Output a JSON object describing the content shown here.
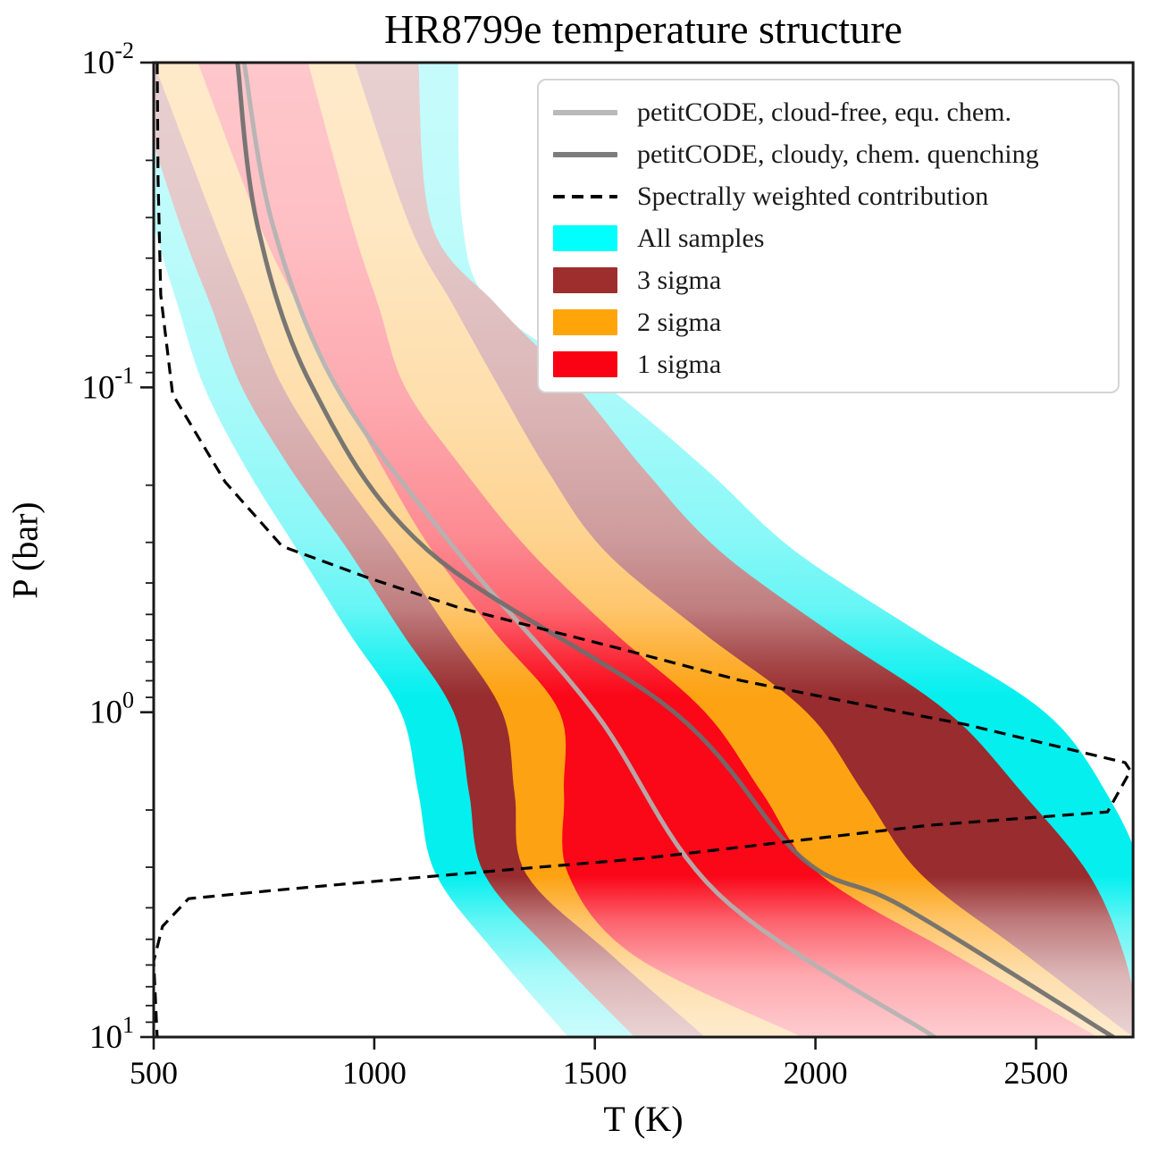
{
  "title": "HR8799e temperature structure",
  "axes": {
    "x": {
      "label": "T (K)",
      "min": 500,
      "max": 2720,
      "ticks": [
        {
          "value": 500,
          "label": "500"
        },
        {
          "value": 1000,
          "label": "1000"
        },
        {
          "value": 1500,
          "label": "1500"
        },
        {
          "value": 2000,
          "label": "2000"
        },
        {
          "value": 2500,
          "label": "2500"
        }
      ]
    },
    "y": {
      "label": "P (bar)",
      "scale": "log",
      "min_exp": -2,
      "max_exp": 1,
      "inverted": true,
      "ticks": [
        {
          "exp": "-2",
          "label": "10^-2"
        },
        {
          "exp": "-1",
          "label": "10^-1"
        },
        {
          "exp": "0",
          "label": "10^0"
        },
        {
          "exp": "1",
          "label": "10^1"
        }
      ]
    }
  },
  "legend": {
    "items": [
      {
        "label": "petitCODE, cloud-free, equ.  chem.",
        "type": "line",
        "color": "#b9b9b9"
      },
      {
        "label": "petitCODE, cloudy, chem.  quenching",
        "type": "line",
        "color": "#7d7d7d"
      },
      {
        "label": "Spectrally weighted contribution",
        "type": "dashed-line",
        "color": "#000000"
      },
      {
        "label": "All samples",
        "type": "patch",
        "color": "#00ffff"
      },
      {
        "label": "3 sigma",
        "type": "patch",
        "color": "#9e2d2d"
      },
      {
        "label": "2 sigma",
        "type": "patch",
        "color": "#ffa50a"
      },
      {
        "label": "1 sigma",
        "type": "patch",
        "color": "#fa0213"
      }
    ]
  },
  "chart_data": {
    "type": "area",
    "title": "HR8799e temperature structure",
    "xlabel": "T (K)",
    "ylabel": "P (bar)",
    "x_unit": "K",
    "y_unit": "bar",
    "xlim": [
      500,
      2720
    ],
    "ylog10_lim": [
      -2,
      1
    ],
    "y_axis_inverted": true,
    "grid": false,
    "legend_position": "upper right",
    "band_logP_grid": [
      -2,
      -1.5,
      -1.25,
      -1,
      -0.75,
      -0.5,
      -0.25,
      0,
      0.25,
      0.5,
      0.75,
      1
    ],
    "bands": [
      {
        "name": "all-samples",
        "color": "#00efef",
        "T_left": [
          400,
          500,
          555,
          615,
          710,
          825,
          940,
          1060,
          1100,
          1140,
          1280,
          1440
        ],
        "T_right": [
          1190,
          1200,
          1270,
          1530,
          1750,
          1950,
          2230,
          2520,
          2660,
          2740,
          2740,
          2740
        ]
      },
      {
        "name": "3-sigma",
        "color": "#96282a",
        "T_left": [
          440,
          560,
          630,
          700,
          810,
          940,
          1060,
          1180,
          1215,
          1250,
          1410,
          1590
        ],
        "T_right": [
          1100,
          1130,
          1280,
          1460,
          1610,
          1780,
          2030,
          2300,
          2470,
          2620,
          2700,
          2740
        ]
      },
      {
        "name": "2-sigma",
        "color": "#fda00d",
        "T_left": [
          500,
          640,
          715,
          793,
          910,
          1045,
          1170,
          1290,
          1318,
          1345,
          1540,
          1750
        ],
        "T_right": [
          955,
          1080,
          1180,
          1283,
          1390,
          1520,
          1740,
          1980,
          2110,
          2240,
          2480,
          2720
        ]
      },
      {
        "name": "1-sigma",
        "color": "#fa0213",
        "T_left": [
          600,
          740,
          828,
          920,
          1020,
          1130,
          1270,
          1420,
          1430,
          1440,
          1590,
          1970
        ],
        "T_right": [
          850,
          950,
          1010,
          1070,
          1200,
          1350,
          1540,
          1750,
          1880,
          2010,
          2320,
          2640
        ]
      }
    ],
    "profiles": [
      {
        "name": "petitCODE cloud-free equ. chem.",
        "color": "#b3b3b3",
        "width": 5,
        "logP": [
          -2,
          -1.5,
          -1,
          -0.5,
          0,
          0.56,
          1
        ],
        "T": [
          705,
          770,
          915,
          1185,
          1500,
          1780,
          2270
        ]
      },
      {
        "name": "petitCODE cloudy chem. quenching",
        "color": "#6e6e6e",
        "width": 5,
        "logP": [
          -2,
          -1.5,
          -1,
          -0.5,
          0,
          0.45,
          0.6,
          1
        ],
        "T": [
          690,
          735,
          860,
          1120,
          1680,
          1970,
          2200,
          2675
        ]
      }
    ],
    "contribution_contour": {
      "name": "spectrally weighted contribution",
      "style": "dashed",
      "color": "#000000",
      "points_T_logP": [
        [
          508,
          -2.0
        ],
        [
          510,
          -1.642
        ],
        [
          516,
          -1.284
        ],
        [
          543,
          -0.979
        ],
        [
          662,
          -0.709
        ],
        [
          791,
          -0.511
        ],
        [
          990,
          -0.412
        ],
        [
          1194,
          -0.321
        ],
        [
          1559,
          -0.195
        ],
        [
          1830,
          -0.098
        ],
        [
          2103,
          -0.024
        ],
        [
          2338,
          0.037
        ],
        [
          2702,
          0.155
        ],
        [
          2714,
          0.18
        ],
        [
          2662,
          0.307
        ],
        [
          2258,
          0.348
        ],
        [
          1610,
          0.45
        ],
        [
          1276,
          0.488
        ],
        [
          1063,
          0.513
        ],
        [
          769,
          0.549
        ],
        [
          579,
          0.574
        ],
        [
          520,
          0.659
        ],
        [
          500,
          0.766
        ],
        [
          508,
          1.0
        ]
      ]
    }
  }
}
